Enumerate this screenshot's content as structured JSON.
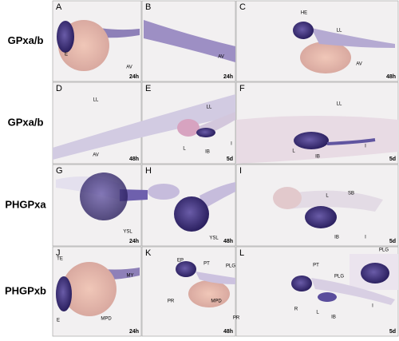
{
  "rows": [
    {
      "label": "GPxa/b",
      "panels": [
        {
          "letter": "A",
          "time": "24h",
          "annotations": [
            "E",
            "AV"
          ]
        },
        {
          "letter": "B",
          "time": "24h",
          "annotations": [
            "AV"
          ]
        },
        {
          "letter": "C",
          "time": "48h",
          "annotations": [
            "HE",
            "LL",
            "AV"
          ]
        }
      ]
    },
    {
      "label": "GPxa/b",
      "panels": [
        {
          "letter": "D",
          "time": "48h",
          "annotations": [
            "LL",
            "AV"
          ]
        },
        {
          "letter": "E",
          "time": "5d",
          "annotations": [
            "LL",
            "L",
            "IB",
            "I"
          ]
        },
        {
          "letter": "F",
          "time": "5d",
          "annotations": [
            "LL",
            "L",
            "IB",
            "I"
          ]
        }
      ]
    },
    {
      "label": "PHGPxa",
      "panels": [
        {
          "letter": "G",
          "time": "24h",
          "annotations": [
            "YSL"
          ]
        },
        {
          "letter": "H",
          "time": "48h",
          "annotations": [
            "YSL"
          ]
        },
        {
          "letter": "I",
          "time": "5d",
          "annotations": [
            "L",
            "SB",
            "IB",
            "I"
          ]
        }
      ]
    },
    {
      "label": "PHGPxb",
      "panels": [
        {
          "letter": "J",
          "time": "24h",
          "annotations": [
            "TE",
            "MY",
            "E",
            "MPD"
          ]
        },
        {
          "letter": "K",
          "time": "48h",
          "annotations": [
            "EP",
            "PT",
            "PLG",
            "PR",
            "MPD",
            "PLG",
            "PR"
          ]
        },
        {
          "letter": "L",
          "time": "5d",
          "annotations": [
            "PT",
            "PLG",
            "R",
            "L",
            "IB",
            "I"
          ]
        }
      ]
    }
  ]
}
